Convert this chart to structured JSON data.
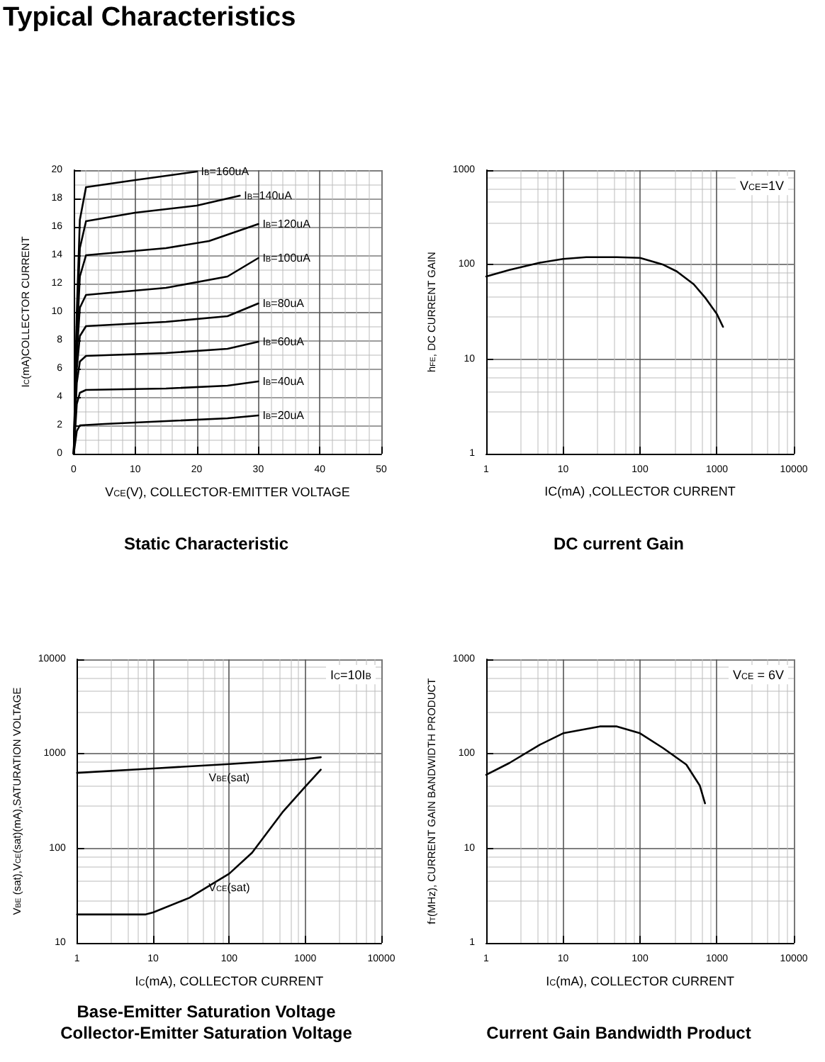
{
  "chart_data": [
    {
      "type": "other",
      "title": "Typical Characteristics"
    },
    {
      "type": "line",
      "title": "Static Characteristic",
      "xlabel": "V$_{CE}$(V), COLLECTOR-EMITTER VOLTAGE",
      "ylabel": "I$_{C}$(mA)COLLECTOR CURRENT",
      "xlim": [
        0,
        50
      ],
      "xticks": [
        0,
        10,
        20,
        30,
        40,
        50
      ],
      "ylim": [
        0,
        20
      ],
      "yticks": [
        0,
        2,
        4,
        6,
        8,
        10,
        12,
        14,
        16,
        18,
        20
      ],
      "grid": true,
      "legend": false,
      "series": [
        {
          "name": "I$_{B}$=20uA",
          "color": "#000000",
          "x": [
            0,
            0.5,
            1,
            5,
            15,
            25,
            30
          ],
          "values": [
            0,
            1.6,
            2.0,
            2.1,
            2.3,
            2.5,
            2.7
          ]
        },
        {
          "name": "I$_{B}$=40uA",
          "color": "#000000",
          "x": [
            0,
            0.5,
            1,
            2,
            15,
            25,
            30
          ],
          "values": [
            0,
            3.5,
            4.3,
            4.5,
            4.6,
            4.8,
            5.1
          ]
        },
        {
          "name": "I$_{B}$=60uA",
          "color": "#000000",
          "x": [
            0,
            0.5,
            1,
            2,
            15,
            25,
            30
          ],
          "values": [
            0,
            5.0,
            6.5,
            6.9,
            7.1,
            7.4,
            7.9
          ]
        },
        {
          "name": "I$_{B}$=80uA",
          "color": "#000000",
          "x": [
            0,
            0.5,
            1,
            2,
            15,
            25,
            30
          ],
          "values": [
            0,
            6.0,
            8.3,
            9.0,
            9.3,
            9.7,
            10.6
          ]
        },
        {
          "name": "I$_{B}$=100uA",
          "color": "#000000",
          "x": [
            0,
            0.5,
            1,
            2,
            15,
            25,
            30
          ],
          "values": [
            0,
            7.0,
            10.3,
            11.2,
            11.7,
            12.5,
            13.8
          ]
        },
        {
          "name": "I$_{B}$=120uA",
          "color": "#000000",
          "x": [
            0,
            0.5,
            1,
            2,
            15,
            22,
            30
          ],
          "values": [
            0,
            8.0,
            12.5,
            14.0,
            14.5,
            15.0,
            16.2
          ]
        },
        {
          "name": "I$_{B}$=140uA",
          "color": "#000000",
          "x": [
            0,
            0.5,
            1,
            2,
            10,
            20,
            27
          ],
          "values": [
            0,
            9.0,
            14.5,
            16.4,
            17.0,
            17.5,
            18.2
          ]
        },
        {
          "name": "I$_{B}$=160uA",
          "color": "#000000",
          "x": [
            0,
            0.5,
            1,
            2,
            10,
            20
          ],
          "values": [
            0,
            10.0,
            16.5,
            18.8,
            19.3,
            19.9
          ]
        }
      ]
    },
    {
      "type": "line",
      "title": "DC current Gain",
      "xlabel": "IC(mA) ,COLLECTOR CURRENT",
      "ylabel": "h$_{FE}$, DC CURRENT GAIN",
      "annotations": [
        "V$_{CE}$=1V"
      ],
      "log": "xy",
      "xlim": [
        1,
        10000
      ],
      "xticks": [
        1,
        10,
        100,
        1000,
        10000
      ],
      "ylim": [
        1,
        1000
      ],
      "yticks": [
        1,
        10,
        100,
        1000
      ],
      "grid": true,
      "legend": false,
      "series": [
        {
          "color": "#000000",
          "x": [
            1,
            2,
            5,
            10,
            20,
            50,
            100,
            200,
            300,
            500,
            700,
            1000,
            1200
          ],
          "values": [
            75,
            88,
            105,
            115,
            120,
            120,
            118,
            100,
            85,
            62,
            45,
            30,
            22
          ]
        }
      ]
    },
    {
      "type": "line",
      "title": "Base-Emitter Saturation Voltage\nCollector-Emitter Saturation Voltage",
      "xlabel": "I$_{C}$(mA), COLLECTOR CURRENT",
      "ylabel": "V$_{BE}$ (sat),V$_{CE}$(sat)(mA),SATURATION VOLTAGE",
      "annotations": [
        "I$_{C}$=10I$_{B}$"
      ],
      "log": "xy",
      "xlim": [
        1,
        10000
      ],
      "xticks": [
        1,
        10,
        100,
        1000,
        10000
      ],
      "ylim": [
        10,
        10000
      ],
      "yticks": [
        10,
        100,
        1000,
        10000
      ],
      "grid": true,
      "legend": false,
      "series": [
        {
          "name": "V$_{BE}$(sat)",
          "color": "#000000",
          "x": [
            1,
            10,
            100,
            1000,
            1600
          ],
          "values": [
            630,
            700,
            780,
            880,
            920
          ]
        },
        {
          "name": "V$_{CE}$(sat)",
          "color": "#000000",
          "x": [
            1,
            8,
            10,
            30,
            100,
            200,
            500,
            1000,
            1600
          ],
          "values": [
            20,
            20,
            21,
            30,
            54,
            90,
            240,
            450,
            680
          ]
        }
      ]
    },
    {
      "type": "line",
      "title": "Current Gain Bandwidth Product",
      "xlabel": "I$_{C}$(mA), COLLECTOR CURRENT",
      "ylabel": "f$_{T}$(MHz), CURRENT GAIN BANDWIDTH PRODUCT",
      "annotations": [
        "V$_{CE}$ = 6V"
      ],
      "log": "xy",
      "xlim": [
        1,
        10000
      ],
      "xticks": [
        1,
        10,
        100,
        1000,
        10000
      ],
      "ylim": [
        1,
        1000
      ],
      "yticks": [
        1,
        10,
        100,
        1000
      ],
      "grid": true,
      "legend": false,
      "series": [
        {
          "color": "#000000",
          "x": [
            1,
            2,
            5,
            10,
            30,
            50,
            100,
            200,
            400,
            600,
            700
          ],
          "values": [
            60,
            80,
            125,
            165,
            195,
            195,
            165,
            115,
            77,
            46,
            30
          ]
        }
      ]
    }
  ]
}
